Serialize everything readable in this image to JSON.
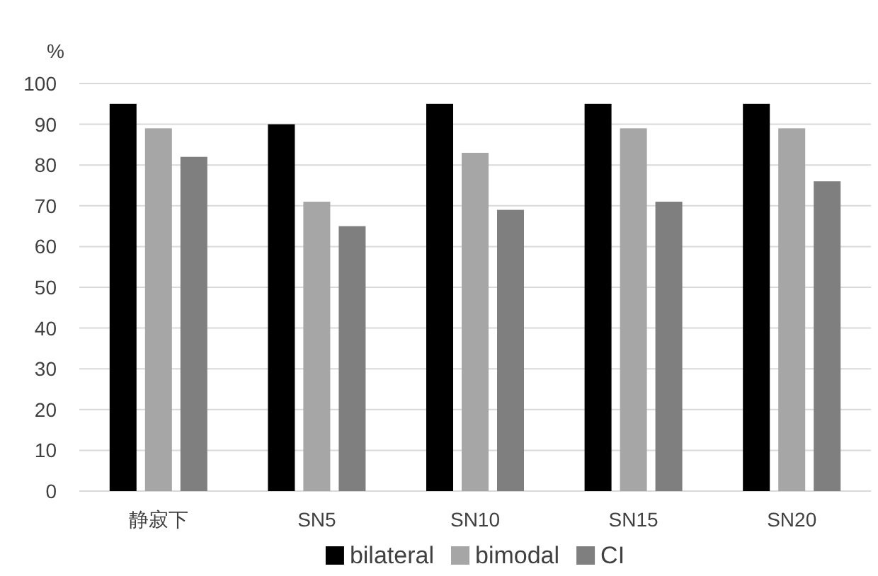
{
  "chart_data": {
    "type": "bar",
    "ylabel": "%",
    "categories": [
      "静寂下",
      "SN5",
      "SN10",
      "SN15",
      "SN20"
    ],
    "series": [
      {
        "name": "bilateral",
        "color": "#000000",
        "values": [
          95,
          90,
          95,
          95,
          95
        ]
      },
      {
        "name": "bimodal",
        "color": "#a6a6a6",
        "values": [
          89,
          71,
          83,
          89,
          89
        ]
      },
      {
        "name": "CI",
        "color": "#7f7f7f",
        "values": [
          82,
          65,
          69,
          71,
          76
        ]
      }
    ],
    "ylim": [
      0,
      100
    ],
    "yticks": [
      0,
      10,
      20,
      30,
      40,
      50,
      60,
      70,
      80,
      90,
      100
    ],
    "grid": "y",
    "legend": "bottom"
  }
}
